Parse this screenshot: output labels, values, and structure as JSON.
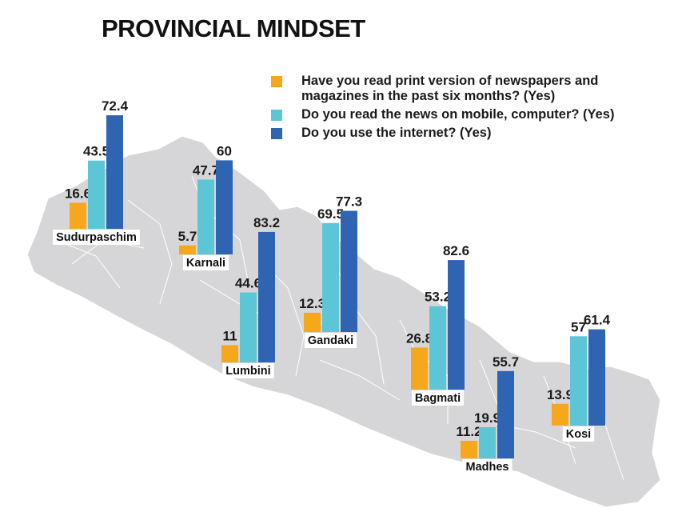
{
  "chart_data": {
    "type": "bar",
    "title": "PROVINCIAL MINDSET",
    "categories": [
      "Sudurpaschim",
      "Karnali",
      "Lumbini",
      "Gandaki",
      "Bagmati",
      "Madhes",
      "Kosi"
    ],
    "series": [
      {
        "name": "Have you read print version of newspapers and magazines in the past six months? (Yes)",
        "color": "#f5a81c",
        "values": [
          16.6,
          5.7,
          11,
          12.3,
          26.8,
          11.2,
          13.9
        ]
      },
      {
        "name": "Do you read the news on mobile, computer? (Yes)",
        "color": "#5cc6d6",
        "values": [
          43.5,
          47.7,
          44.6,
          69.5,
          53.2,
          19.9,
          57
        ]
      },
      {
        "name": "Do you use the internet? (Yes)",
        "color": "#2f64b3",
        "values": [
          72.4,
          60,
          83.2,
          77.3,
          82.6,
          55.7,
          61.4
        ]
      }
    ],
    "value_labels": [
      [
        "16.6",
        "43.5",
        "72.4"
      ],
      [
        "5.7",
        "47.7",
        "60"
      ],
      [
        "11",
        "44.6",
        "83.2"
      ],
      [
        "12.3",
        "69.5",
        "77.3"
      ],
      [
        "26.8",
        "53.2",
        "82.6"
      ],
      [
        "11.2",
        "19.9",
        "55.7"
      ],
      [
        "13.9",
        "57",
        "61.4"
      ]
    ],
    "grid": false,
    "legend_position": "top-right",
    "background": "map of Nepal (grey)"
  }
}
